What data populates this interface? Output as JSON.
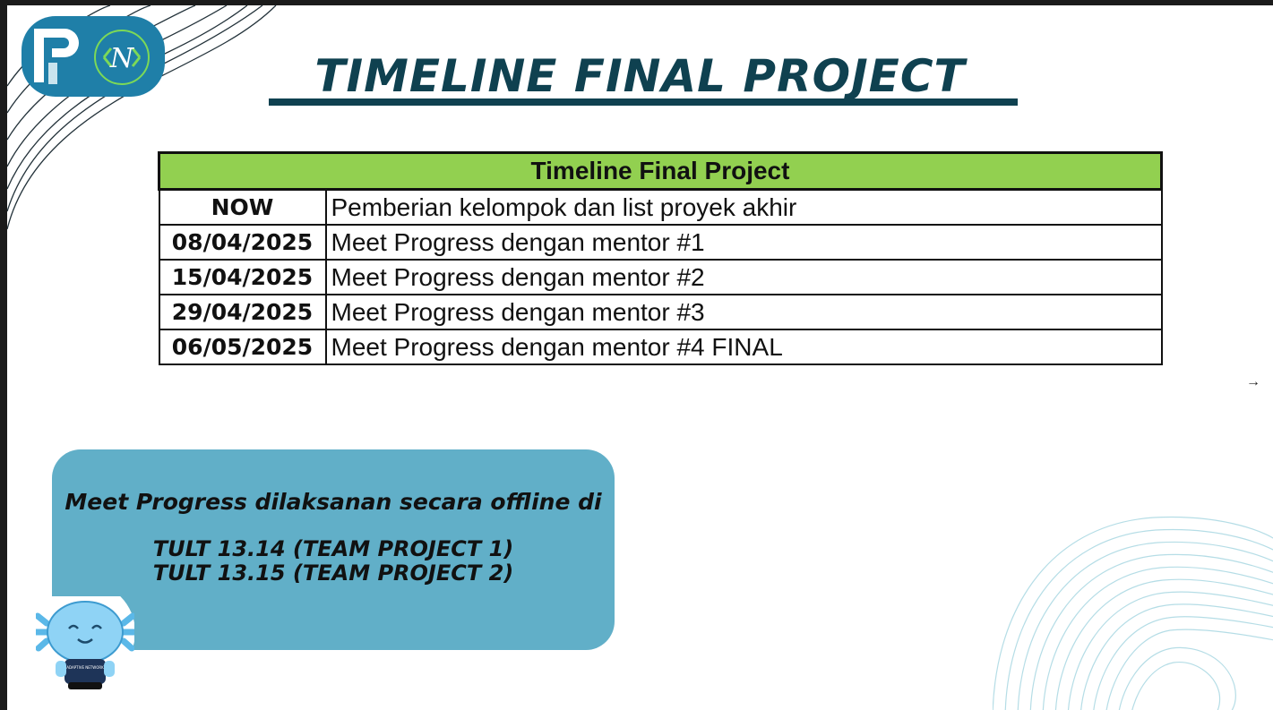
{
  "title": "TIMELINE FINAL PROJECT",
  "logo": {
    "badge_1": "P",
    "badge_2": "N",
    "accent": "#1f7fa8",
    "green": "#7cd957"
  },
  "table": {
    "header": "Timeline Final Project",
    "header_color": "#92d050",
    "rows": [
      {
        "date": "NOW",
        "desc": "Pemberian kelompok dan list proyek akhir"
      },
      {
        "date": "08/04/2025",
        "desc": "Meet Progress dengan mentor #1"
      },
      {
        "date": "15/04/2025",
        "desc": "Meet Progress dengan mentor #2"
      },
      {
        "date": "29/04/2025",
        "desc": "Meet Progress dengan mentor #3"
      },
      {
        "date": "06/05/2025",
        "desc": "Meet Progress dengan mentor #4 FINAL"
      }
    ]
  },
  "info": {
    "line1": "Meet Progress dilaksanan secara offline di",
    "line2": "TULT 13.14 (TEAM PROJECT 1)",
    "line3": "TULT 13.15 (TEAM PROJECT 2)",
    "box_color": "#61afc8"
  },
  "mascot": {
    "shirt_text": "ADAPTIVE NETWORK"
  },
  "nav": {
    "next_icon": "arrow-right-icon",
    "next_glyph": "→"
  }
}
